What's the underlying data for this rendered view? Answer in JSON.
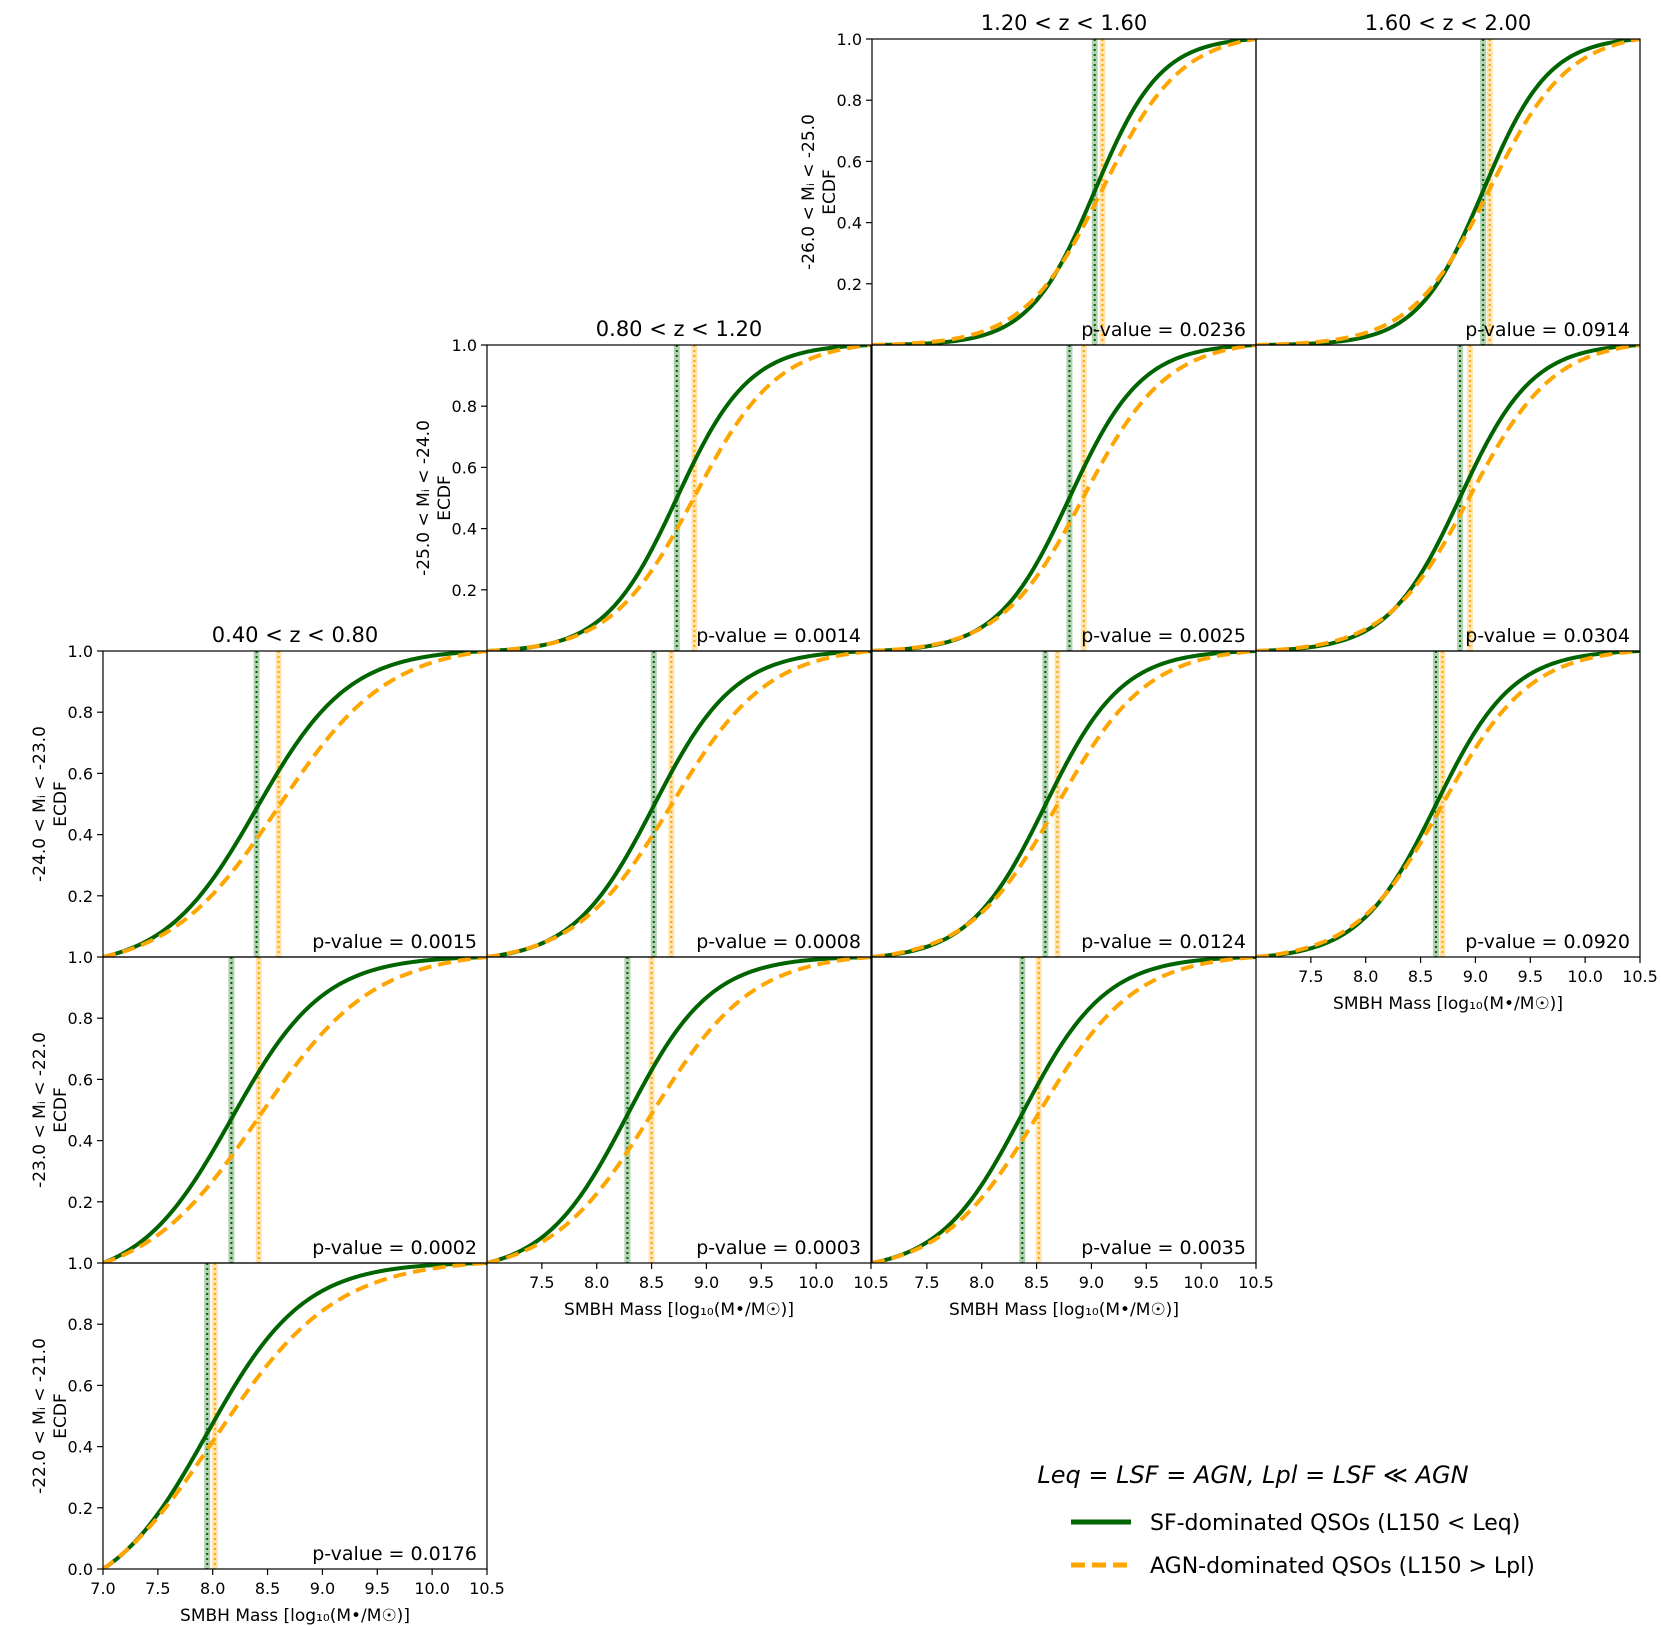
{
  "chart_data": {
    "type": "line",
    "figure_title": "",
    "xlim": [
      7.0,
      10.5
    ],
    "ylim": [
      0.0,
      1.0
    ],
    "x_ticks": [
      7.0,
      7.5,
      8.0,
      8.5,
      9.0,
      9.5,
      10.0,
      10.5
    ],
    "y_ticks": [
      0.0,
      0.2,
      0.4,
      0.6,
      0.8,
      1.0
    ],
    "x_tick_labels": [
      "7.0",
      "7.5",
      "8.0",
      "8.5",
      "9.0",
      "9.5",
      "10.0",
      "10.5"
    ],
    "y_tick_labels": [
      "0.0",
      "0.2",
      "0.4",
      "0.6",
      "0.8",
      "1.0"
    ],
    "xlabel": "SMBH Mass [log₁₀(M•/M☉)]",
    "ylabel_common": "ECDF",
    "columns": [
      "0.40 < z < 0.80",
      "0.80 < z < 1.20",
      "1.20 < z < 1.60",
      "1.60 < z < 2.00"
    ],
    "rows": [
      "-26.0 < Mᵢ < -25.0",
      "-25.0 < Mᵢ < -24.0",
      "-24.0 < Mᵢ < -23.0",
      "-23.0 < Mᵢ < -22.0",
      "-22.0 < Mᵢ < -21.0"
    ],
    "colors": {
      "sf": "#006400",
      "agn": "#FFA500"
    },
    "legend": {
      "title": "Leq = LSF = AGN, Lpl = LSF ≪ AGN",
      "sf_label": "SF-dominated QSOs (L150 < Leq)",
      "agn_label": "AGN-dominated QSOs (L150 > Lpl)"
    },
    "panels": [
      {
        "row": 0,
        "col": 2,
        "p_value": "p-value = 0.0236",
        "sf_median": 9.03,
        "agn_median": 9.1,
        "sf_width": 0.3,
        "agn_width": 0.36
      },
      {
        "row": 0,
        "col": 3,
        "p_value": "p-value = 0.0914",
        "sf_median": 9.07,
        "agn_median": 9.13,
        "sf_width": 0.3,
        "agn_width": 0.36
      },
      {
        "row": 1,
        "col": 1,
        "p_value": "p-value = 0.0014",
        "sf_median": 8.73,
        "agn_median": 8.89,
        "sf_width": 0.33,
        "agn_width": 0.38
      },
      {
        "row": 1,
        "col": 2,
        "p_value": "p-value = 0.0025",
        "sf_median": 8.8,
        "agn_median": 8.93,
        "sf_width": 0.33,
        "agn_width": 0.38
      },
      {
        "row": 1,
        "col": 3,
        "p_value": "p-value = 0.0304",
        "sf_median": 8.86,
        "agn_median": 8.95,
        "sf_width": 0.33,
        "agn_width": 0.38
      },
      {
        "row": 2,
        "col": 0,
        "p_value": "p-value = 0.0015",
        "sf_median": 8.4,
        "agn_median": 8.6,
        "sf_width": 0.42,
        "agn_width": 0.5
      },
      {
        "row": 2,
        "col": 1,
        "p_value": "p-value = 0.0008",
        "sf_median": 8.52,
        "agn_median": 8.68,
        "sf_width": 0.37,
        "agn_width": 0.44
      },
      {
        "row": 2,
        "col": 2,
        "p_value": "p-value = 0.0124",
        "sf_median": 8.58,
        "agn_median": 8.69,
        "sf_width": 0.35,
        "agn_width": 0.41
      },
      {
        "row": 2,
        "col": 3,
        "p_value": "p-value = 0.0920",
        "sf_median": 8.64,
        "agn_median": 8.7,
        "sf_width": 0.35,
        "agn_width": 0.4
      },
      {
        "row": 3,
        "col": 0,
        "p_value": "p-value = 0.0002",
        "sf_median": 8.17,
        "agn_median": 8.42,
        "sf_width": 0.42,
        "agn_width": 0.52
      },
      {
        "row": 3,
        "col": 1,
        "p_value": "p-value = 0.0003",
        "sf_median": 8.28,
        "agn_median": 8.5,
        "sf_width": 0.38,
        "agn_width": 0.46
      },
      {
        "row": 3,
        "col": 2,
        "p_value": "p-value = 0.0035",
        "sf_median": 8.37,
        "agn_median": 8.52,
        "sf_width": 0.38,
        "agn_width": 0.44
      },
      {
        "row": 4,
        "col": 0,
        "p_value": "p-value = 0.0176",
        "sf_median": 7.95,
        "agn_median": 8.02,
        "sf_width": 0.44,
        "agn_width": 0.55
      }
    ]
  }
}
